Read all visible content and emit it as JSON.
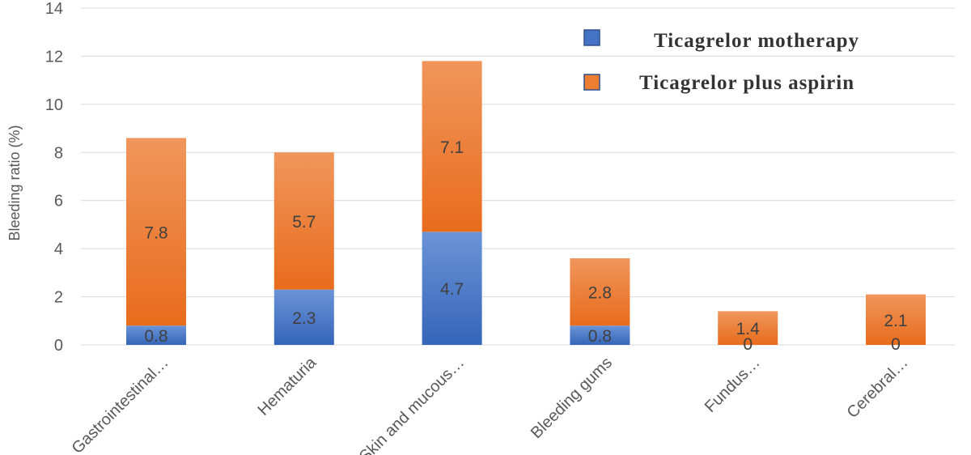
{
  "chart_data": {
    "type": "bar",
    "stacked": true,
    "ylabel": "Bleeding ratio (%)",
    "ylim": [
      0,
      14
    ],
    "yticks": [
      0,
      2,
      4,
      6,
      8,
      10,
      12,
      14
    ],
    "grid": true,
    "legend_position": "top-right",
    "categories": [
      "Gastrointestinal…",
      "Hematuria",
      "Skin and mucous…",
      "Bleeding gums",
      "Fundus…",
      "Cerebral…"
    ],
    "series": [
      {
        "name": "Ticagrelor motherapy",
        "color": "#4472C4",
        "values": [
          0.8,
          2.3,
          4.7,
          0.8,
          0,
          0
        ]
      },
      {
        "name": "Ticagrelor plus aspirin",
        "color": "#ED7D31",
        "values": [
          7.8,
          5.7,
          7.1,
          2.8,
          1.4,
          2.1
        ]
      }
    ]
  }
}
